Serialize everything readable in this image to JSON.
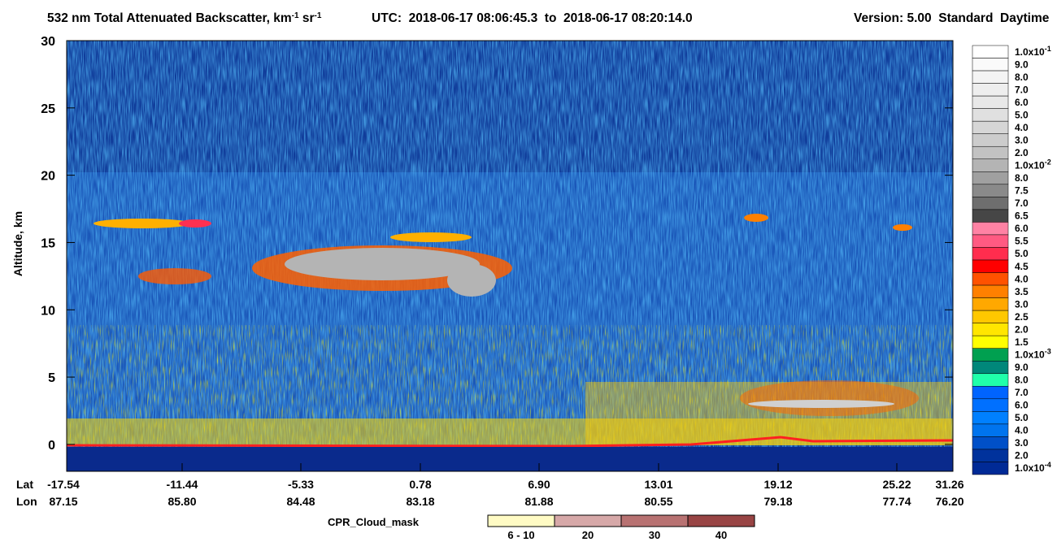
{
  "chart_data": {
    "type": "curtain",
    "title": [
      {
        "text": "532 nm Total Attenuated Backscatter, km"
      },
      {
        "text": "-1",
        "sup": true
      },
      {
        "text": " sr"
      },
      {
        "text": "-1",
        "sup": true
      }
    ],
    "utc": "UTC:  2018-06-17 08:06:45.3  to  2018-06-17 08:20:14.0",
    "version": "Version: 5.00  Standard  Daytime",
    "ylabel": "Altitude, km",
    "ylim": [
      -2,
      30
    ],
    "yticks": [
      0,
      5,
      10,
      15,
      20,
      25,
      30
    ],
    "lat_title": "Lat",
    "lon_title": "Lon",
    "lat_labels": [
      "-17.54",
      "-11.44",
      "-5.33",
      "0.78",
      "6.90",
      "13.01",
      "19.12",
      "25.22",
      "31.26"
    ],
    "lon_labels": [
      "87.15",
      "85.80",
      "84.48",
      "83.18",
      "81.88",
      "80.55",
      "79.18",
      "77.74",
      "76.20"
    ],
    "colorbar": [
      {
        "label": "1.0x10",
        "sup": "-1",
        "color": "#ffffff"
      },
      {
        "label": "9.0",
        "color": "#fafafa"
      },
      {
        "label": "8.0",
        "color": "#f4f4f4"
      },
      {
        "label": "7.0",
        "color": "#eeeeee"
      },
      {
        "label": "6.0",
        "color": "#e8e8e8"
      },
      {
        "label": "5.0",
        "color": "#e0e0e0"
      },
      {
        "label": "4.0",
        "color": "#d6d6d6"
      },
      {
        "label": "3.0",
        "color": "#cccccc"
      },
      {
        "label": "2.0",
        "color": "#c2c2c2"
      },
      {
        "label": "1.0x10",
        "sup": "-2",
        "color": "#b4b4b4"
      },
      {
        "label": "8.0",
        "color": "#a0a0a0"
      },
      {
        "label": "7.5",
        "color": "#8a8a8a"
      },
      {
        "label": "7.0",
        "color": "#6e6e6e"
      },
      {
        "label": "6.5",
        "color": "#464646"
      },
      {
        "label": "6.0",
        "color": "#ff82a4"
      },
      {
        "label": "5.5",
        "color": "#ff5a82"
      },
      {
        "label": "5.0",
        "color": "#ff2d4e"
      },
      {
        "label": "4.5",
        "color": "#ff0000"
      },
      {
        "label": "4.0",
        "color": "#ff5200"
      },
      {
        "label": "3.5",
        "color": "#ff8000"
      },
      {
        "label": "3.0",
        "color": "#ffa800"
      },
      {
        "label": "2.5",
        "color": "#ffc800"
      },
      {
        "label": "2.0",
        "color": "#ffe600"
      },
      {
        "label": "1.5",
        "color": "#ffff00"
      },
      {
        "label": "1.0x10",
        "sup": "-3",
        "color": "#00a050"
      },
      {
        "label": "9.0",
        "color": "#00877a"
      },
      {
        "label": "8.0",
        "color": "#20ffaa"
      },
      {
        "label": "7.0",
        "color": "#0064ff"
      },
      {
        "label": "6.0",
        "color": "#0070ff"
      },
      {
        "label": "5.0",
        "color": "#0080ff"
      },
      {
        "label": "4.0",
        "color": "#0074ee"
      },
      {
        "label": "3.0",
        "color": "#0050c8"
      },
      {
        "label": "2.0",
        "color": "#00329c"
      },
      {
        "label": "1.0x10",
        "sup": "-4",
        "color": "#002a96"
      }
    ],
    "cpr_title": "CPR_Cloud_mask",
    "cpr_legend": [
      {
        "label": "6 - 10",
        "color": "#fffbc4"
      },
      {
        "label": "20",
        "color": "#d6a8a8"
      },
      {
        "label": "30",
        "color": "#b87272"
      },
      {
        "label": "40",
        "color": "#984444"
      }
    ]
  }
}
